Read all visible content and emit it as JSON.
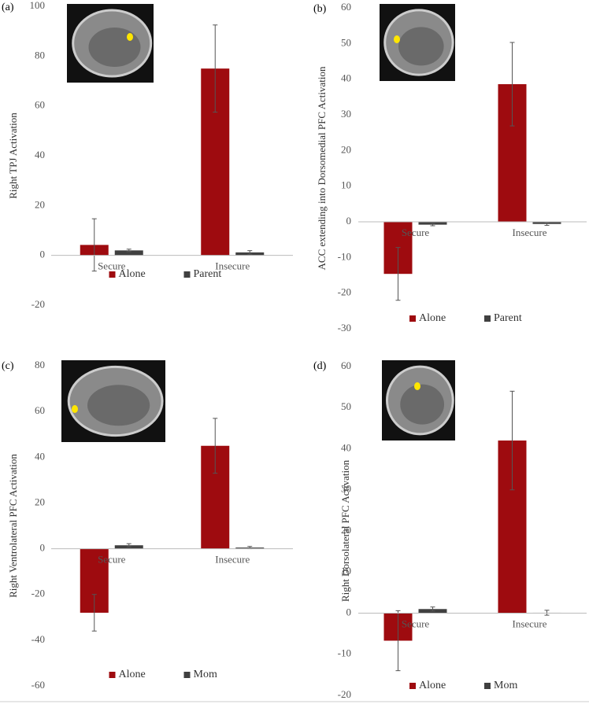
{
  "chart_data": [
    {
      "type": "bar",
      "panel_label": "(a)",
      "ylabel": "Right TPJ Activation",
      "categories": [
        "Secure",
        "Insecure"
      ],
      "series": [
        {
          "name": "Alone",
          "color": "#9e0b0f",
          "values": [
            4.2,
            75
          ],
          "errors": [
            10.5,
            17.5
          ]
        },
        {
          "name": "Parent",
          "color": "#404040",
          "values": [
            2,
            1.2
          ],
          "errors": [
            0.5,
            0.7
          ]
        }
      ],
      "ylim": [
        -20,
        100
      ],
      "yticks": [
        -20,
        0,
        20,
        40,
        60,
        80,
        100
      ]
    },
    {
      "type": "bar",
      "panel_label": "(b)",
      "ylabel": "ACC extending into Dorsomedial PFC Activation",
      "categories": [
        "Secure",
        "Insecure"
      ],
      "series": [
        {
          "name": "Alone",
          "color": "#9e0b0f",
          "values": [
            -14.6,
            38.6
          ],
          "errors": [
            7.4,
            11.7
          ]
        },
        {
          "name": "Parent",
          "color": "#404040",
          "values": [
            -0.8,
            -0.6
          ],
          "errors": [
            0.3,
            0.4
          ]
        }
      ],
      "ylim": [
        -30,
        60
      ],
      "yticks": [
        -30,
        -20,
        -10,
        0,
        10,
        20,
        30,
        40,
        50,
        60
      ]
    },
    {
      "type": "bar",
      "panel_label": "(c)",
      "ylabel": "Right Ventrolateral PFC Activation",
      "categories": [
        "Secure",
        "Insecure"
      ],
      "series": [
        {
          "name": "Alone",
          "color": "#9e0b0f",
          "values": [
            -28,
            45
          ],
          "errors": [
            8,
            12
          ]
        },
        {
          "name": "Mom",
          "color": "#404040",
          "values": [
            1.5,
            0.5
          ],
          "errors": [
            0.7,
            0.5
          ]
        }
      ],
      "ylim": [
        -60,
        80
      ],
      "yticks": [
        -60,
        -40,
        -20,
        0,
        20,
        40,
        60,
        80
      ]
    },
    {
      "type": "bar",
      "panel_label": "(d)",
      "ylabel": "Right Dorsolateral PFC Activation",
      "categories": [
        "Secure",
        "Insecure"
      ],
      "series": [
        {
          "name": "Alone",
          "color": "#9e0b0f",
          "values": [
            -6.7,
            42
          ],
          "errors": [
            7.3,
            12
          ]
        },
        {
          "name": "Mom",
          "color": "#404040",
          "values": [
            1,
            0.1
          ],
          "errors": [
            0.5,
            0.6
          ]
        }
      ],
      "ylim": [
        -20,
        60
      ],
      "yticks": [
        -20,
        -10,
        0,
        10,
        20,
        30,
        40,
        50,
        60
      ]
    }
  ]
}
